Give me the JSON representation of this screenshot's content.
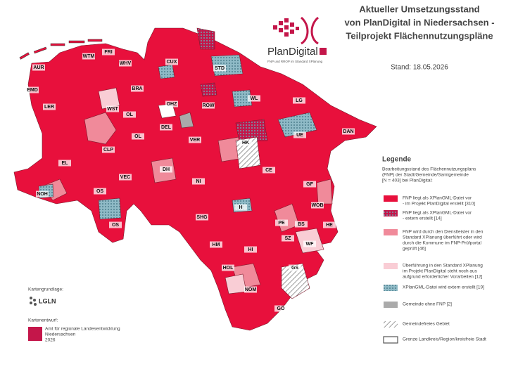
{
  "header": {
    "title_lines": [
      "Aktueller Umsetzungsstand",
      "von PlanDigital in Niedersachsen -",
      "Teilprojekt Flächennutzungspläne"
    ],
    "logo_name": "PlanDigital",
    "logo_tagline": "FNP und RROP im Standard XPlanung",
    "date": "Stand: 18.05.2026"
  },
  "legend": {
    "title": "Legende",
    "intro_lines": [
      "Bearbeitungsstand des Flächennutzungsplans",
      "(FNP) der Stadt/Gemeinde/Samtgemeinde",
      "[N = 403] bei PlanDigital:"
    ],
    "items": [
      {
        "lines": [
          "FNP liegt als XPlanGML-Datei vor",
          "- im Projekt PlanDigital erstellt [310]"
        ]
      },
      {
        "lines": [
          "FNP liegt als XPlanGML-Datei vor",
          "- extern erstellt [14]"
        ]
      },
      {
        "lines": [
          "FNP wird durch den Dienstleister in den",
          "Standard XPlanung überführt oder wird",
          "durch die Kommune im FNP-Prüfportal",
          "geprüft [46]"
        ]
      },
      {
        "lines": [
          "Überführung in den Standard XPlanung",
          "im Projekt PlanDigital steht noch aus",
          "aufgrund erforderlicher Vorarbeiten [12]"
        ]
      },
      {
        "lines": [
          "XPlanGML-Datei wird extern erstellt [19]"
        ]
      },
      {
        "lines": [
          "Gemeinde ohne FNP [2]"
        ]
      },
      {
        "lines": [
          "Gemeindefreies Gebiet"
        ]
      },
      {
        "lines": [
          "Grenze Landkreis/Region/kreisfreie Stadt"
        ]
      }
    ]
  },
  "credits": {
    "basis_label": "Kartengrundlage:",
    "basis_org": "LGLN",
    "design_label": "Kartenentwurf:",
    "design_lines": [
      "Amt für regionale Landesentwicklung",
      "Niedersachsen",
      "2026"
    ]
  },
  "map": {
    "labels": [
      "WTM",
      "FRI",
      "AUR",
      "WHV",
      "CUX",
      "STD",
      "EMD",
      "BRA",
      "LER",
      "WST",
      "OL",
      "OHZ",
      "ROW",
      "WL",
      "LG",
      "DEL",
      "OL",
      "UE",
      "DAN",
      "CLP",
      "VER",
      "HK",
      "EL",
      "VEC",
      "DH",
      "CE",
      "NI",
      "GF",
      "NOH",
      "OS",
      "WOB",
      "H",
      "SHG",
      "PE",
      "BS",
      "HE",
      "OS",
      "HM",
      "SZ",
      "WF",
      "HI",
      "HOL",
      "GS",
      "NOM",
      "GÖ"
    ]
  }
}
